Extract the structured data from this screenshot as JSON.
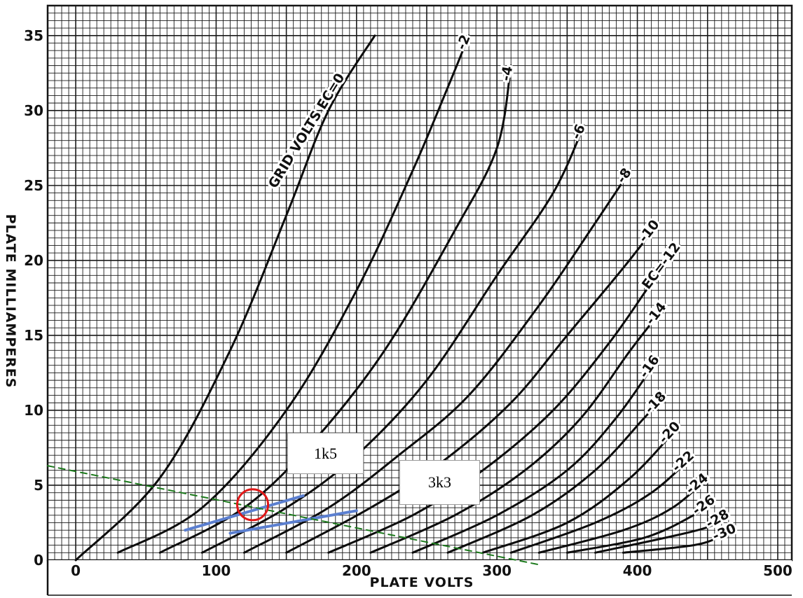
{
  "chart_data": {
    "type": "line",
    "xlabel": "PLATE VOLTS",
    "ylabel": "PLATE MILLIAMPERES",
    "xlim": [
      -20,
      510
    ],
    "ylim": [
      0,
      37
    ],
    "x_ticks": [
      {
        "value": 0,
        "label": "0"
      },
      {
        "value": 100,
        "label": "100"
      },
      {
        "value": 200,
        "label": "200"
      },
      {
        "value": 300,
        "label": "300"
      },
      {
        "value": 400,
        "label": "400"
      },
      {
        "value": 500,
        "label": "500"
      }
    ],
    "y_ticks": [
      {
        "value": 0,
        "label": "0"
      },
      {
        "value": 5,
        "label": "5"
      },
      {
        "value": 10,
        "label": "10"
      },
      {
        "value": 15,
        "label": "15"
      },
      {
        "value": 20,
        "label": "20"
      },
      {
        "value": 25,
        "label": "25"
      },
      {
        "value": 30,
        "label": "30"
      },
      {
        "value": 35,
        "label": "35"
      }
    ],
    "grid": true,
    "series": [
      {
        "name": "GRID VOLTS EC=0",
        "label": "GRID VOLTS EC=0",
        "points": [
          [
            0,
            0
          ],
          [
            60,
            5.5
          ],
          [
            110,
            14
          ],
          [
            150,
            23
          ],
          [
            180,
            30
          ],
          [
            213,
            35
          ]
        ]
      },
      {
        "name": "-2",
        "label": "-2",
        "points": [
          [
            30,
            0.5
          ],
          [
            90,
            3.5
          ],
          [
            150,
            10
          ],
          [
            200,
            18
          ],
          [
            240,
            26
          ],
          [
            267,
            32
          ],
          [
            280,
            35
          ]
        ]
      },
      {
        "name": "-4",
        "label": "-4",
        "points": [
          [
            60,
            0.5
          ],
          [
            120,
            3.5
          ],
          [
            170,
            8
          ],
          [
            220,
            14
          ],
          [
            270,
            22
          ],
          [
            300,
            27.5
          ],
          [
            310,
            33
          ]
        ]
      },
      {
        "name": "-6",
        "label": "-6",
        "points": [
          [
            90,
            0.5
          ],
          [
            150,
            3.5
          ],
          [
            200,
            7
          ],
          [
            250,
            12
          ],
          [
            300,
            19
          ],
          [
            340,
            24.5
          ],
          [
            362,
            29
          ]
        ]
      },
      {
        "name": "-8",
        "label": "-8",
        "points": [
          [
            120,
            0.5
          ],
          [
            180,
            3.5
          ],
          [
            230,
            7
          ],
          [
            280,
            11
          ],
          [
            330,
            17
          ],
          [
            370,
            22.5
          ],
          [
            395,
            26
          ]
        ]
      },
      {
        "name": "-10",
        "label": "-10",
        "points": [
          [
            150,
            0.5
          ],
          [
            210,
            3.5
          ],
          [
            260,
            6.5
          ],
          [
            310,
            10.5
          ],
          [
            350,
            15
          ],
          [
            390,
            19.5
          ],
          [
            415,
            22.5
          ]
        ]
      },
      {
        "name": "EC=-12",
        "label": "EC=-12",
        "points": [
          [
            180,
            0.5
          ],
          [
            240,
            3
          ],
          [
            290,
            6
          ],
          [
            340,
            10
          ],
          [
            380,
            14.5
          ],
          [
            410,
            18.5
          ],
          [
            430,
            21
          ]
        ]
      },
      {
        "name": "-14",
        "label": "-14",
        "points": [
          [
            210,
            0.5
          ],
          [
            270,
            3
          ],
          [
            320,
            6
          ],
          [
            360,
            9.5
          ],
          [
            395,
            14
          ],
          [
            420,
            17
          ]
        ]
      },
      {
        "name": "-16",
        "label": "-16",
        "points": [
          [
            240,
            0.5
          ],
          [
            300,
            3
          ],
          [
            350,
            6
          ],
          [
            385,
            9.5
          ],
          [
            415,
            13.5
          ]
        ]
      },
      {
        "name": "-18",
        "label": "-18",
        "points": [
          [
            265,
            0.5
          ],
          [
            325,
            3
          ],
          [
            370,
            6
          ],
          [
            405,
            9.5
          ],
          [
            420,
            11
          ]
        ]
      },
      {
        "name": "-20",
        "label": "-20",
        "points": [
          [
            290,
            0.5
          ],
          [
            350,
            2.5
          ],
          [
            395,
            5.5
          ],
          [
            430,
            9
          ]
        ]
      },
      {
        "name": "-22",
        "label": "-22",
        "points": [
          [
            310,
            0.5
          ],
          [
            370,
            2.5
          ],
          [
            410,
            4.5
          ],
          [
            440,
            7
          ]
        ]
      },
      {
        "name": "-24",
        "label": "-24",
        "points": [
          [
            330,
            0.5
          ],
          [
            390,
            2
          ],
          [
            425,
            3.5
          ],
          [
            450,
            5.5
          ]
        ]
      },
      {
        "name": "-26",
        "label": "-26",
        "points": [
          [
            350,
            0.5
          ],
          [
            405,
            1.5
          ],
          [
            440,
            3
          ],
          [
            455,
            4
          ]
        ]
      },
      {
        "name": "-28",
        "label": "-28",
        "points": [
          [
            370,
            0.5
          ],
          [
            420,
            1.5
          ],
          [
            450,
            2.2
          ],
          [
            465,
            3
          ]
        ]
      },
      {
        "name": "-30",
        "label": "-30",
        "points": [
          [
            390,
            0.5
          ],
          [
            440,
            1
          ],
          [
            460,
            1.6
          ],
          [
            470,
            2
          ]
        ]
      }
    ],
    "overlays": [
      {
        "kind": "load-line",
        "color": "#5b7fd0",
        "points": [
          [
            78,
            2
          ],
          [
            162,
            4.3
          ]
        ]
      },
      {
        "kind": "load-line",
        "color": "#5b7fd0",
        "points": [
          [
            110,
            1.8
          ],
          [
            200,
            3.3
          ]
        ]
      },
      {
        "kind": "load-line-dashed",
        "color": "#1c7a1c",
        "points": [
          [
            -20,
            6.3
          ],
          [
            330,
            -0.3
          ]
        ]
      },
      {
        "kind": "operating-point",
        "color": "#e01818",
        "center": [
          126,
          3.7
        ],
        "radius_v": 11
      }
    ],
    "annotations": [
      {
        "text": "1k5"
      },
      {
        "text": "3k3"
      }
    ]
  }
}
